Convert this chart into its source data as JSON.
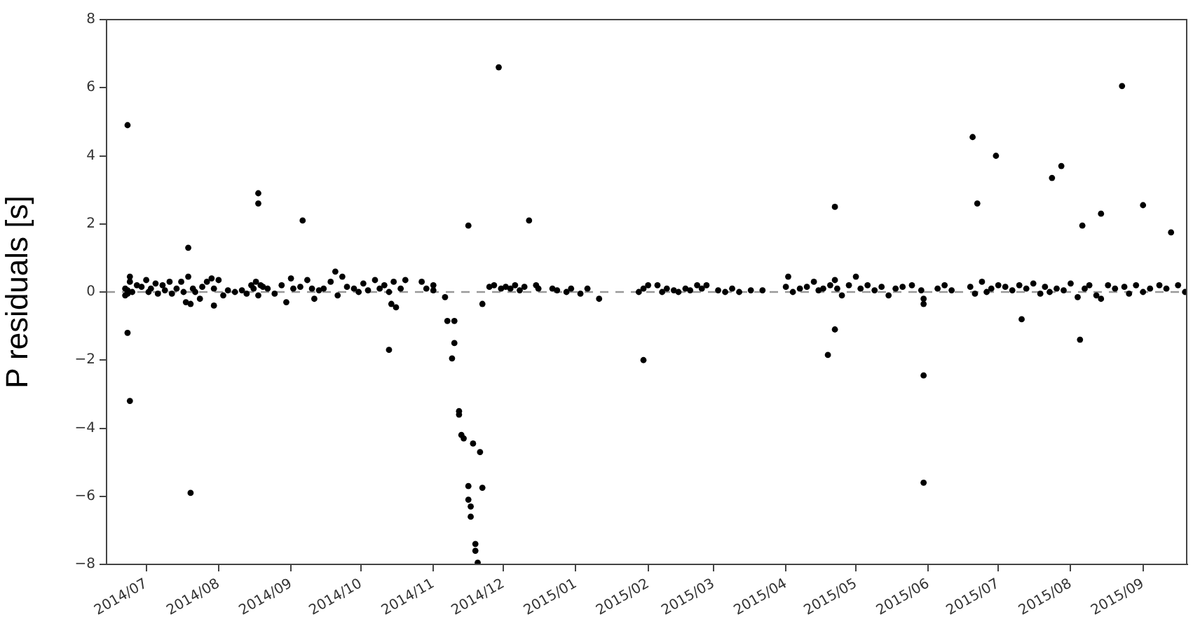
{
  "chart_data": {
    "type": "scatter",
    "ylabel": "P residuals [s]",
    "marker": "circle",
    "grid": false,
    "legend": false,
    "xlim": [
      "2014-06-14",
      "2015-09-20"
    ],
    "ylim": [
      -8,
      8
    ],
    "yticks": [
      -8,
      -6,
      -4,
      -2,
      0,
      2,
      4,
      6,
      8
    ],
    "xticks": [
      {
        "value": "2014-07-01",
        "label": "2014/07"
      },
      {
        "value": "2014-08-01",
        "label": "2014/08"
      },
      {
        "value": "2014-09-01",
        "label": "2014/09"
      },
      {
        "value": "2014-10-01",
        "label": "2014/10"
      },
      {
        "value": "2014-11-01",
        "label": "2014/11"
      },
      {
        "value": "2014-12-01",
        "label": "2014/12"
      },
      {
        "value": "2015-01-01",
        "label": "2015/01"
      },
      {
        "value": "2015-02-01",
        "label": "2015/02"
      },
      {
        "value": "2015-03-01",
        "label": "2015/03"
      },
      {
        "value": "2015-04-01",
        "label": "2015/04"
      },
      {
        "value": "2015-05-01",
        "label": "2015/05"
      },
      {
        "value": "2015-06-01",
        "label": "2015/06"
      },
      {
        "value": "2015-07-01",
        "label": "2015/07"
      },
      {
        "value": "2015-08-01",
        "label": "2015/08"
      },
      {
        "value": "2015-09-01",
        "label": "2015/09"
      }
    ],
    "ref_lines": [
      {
        "axis": "y",
        "value": 0,
        "color": "#999999",
        "line_style": "dashed"
      }
    ],
    "series": [
      {
        "color": "#000000",
        "x": [
          "2014-06-23",
          "2014-06-23",
          "2014-06-24",
          "2014-07-19",
          "2014-07-20",
          "2014-08-18",
          "2014-08-18",
          "2014-09-06",
          "2014-10-13",
          "2014-11-16",
          "2014-11-29",
          "2014-12-12",
          "2015-01-30",
          "2014-11-06",
          "2014-11-07",
          "2014-11-10",
          "2014-11-10",
          "2014-11-09",
          "2014-11-12",
          "2014-11-12",
          "2014-11-13",
          "2014-11-14",
          "2014-11-18",
          "2014-11-21",
          "2014-11-16",
          "2014-11-22",
          "2014-11-16",
          "2014-11-17",
          "2014-11-17",
          "2014-11-19",
          "2014-11-19",
          "2014-11-20",
          "2014-11-22",
          "2015-04-22",
          "2015-04-22",
          "2015-04-19",
          "2015-05-30",
          "2015-05-30",
          "2015-06-20",
          "2015-06-22",
          "2015-06-30",
          "2015-07-11",
          "2015-07-24",
          "2015-07-28",
          "2015-08-06",
          "2015-08-05",
          "2015-08-14",
          "2015-08-23",
          "2015-09-01",
          "2015-09-13",
          "2014-06-22",
          "2014-06-22",
          "2014-06-23",
          "2014-06-23",
          "2014-06-24",
          "2014-06-24",
          "2014-06-25",
          "2014-06-27",
          "2014-06-29",
          "2014-07-01",
          "2014-07-02",
          "2014-07-03",
          "2014-07-05",
          "2014-07-06",
          "2014-07-08",
          "2014-07-09",
          "2014-07-11",
          "2014-07-12",
          "2014-07-14",
          "2014-07-16",
          "2014-07-17",
          "2014-07-18",
          "2014-07-19",
          "2014-07-20",
          "2014-07-21",
          "2014-07-22",
          "2014-07-24",
          "2014-07-25",
          "2014-07-27",
          "2014-07-29",
          "2014-07-30",
          "2014-07-30",
          "2014-08-01",
          "2014-08-03",
          "2014-08-05",
          "2014-08-08",
          "2014-08-11",
          "2014-08-13",
          "2014-08-15",
          "2014-08-16",
          "2014-08-17",
          "2014-08-18",
          "2014-08-19",
          "2014-08-20",
          "2014-08-22",
          "2014-08-25",
          "2014-08-28",
          "2014-08-30",
          "2014-09-01",
          "2014-09-02",
          "2014-09-05",
          "2014-09-08",
          "2014-09-10",
          "2014-09-11",
          "2014-09-13",
          "2014-09-15",
          "2014-09-18",
          "2014-09-20",
          "2014-09-21",
          "2014-09-23",
          "2014-09-25",
          "2014-09-28",
          "2014-09-30",
          "2014-10-02",
          "2014-10-04",
          "2014-10-07",
          "2014-10-09",
          "2014-10-11",
          "2014-10-13",
          "2014-10-14",
          "2014-10-15",
          "2014-10-16",
          "2014-10-18",
          "2014-10-20",
          "2014-10-27",
          "2014-10-29",
          "2014-11-01",
          "2014-11-01",
          "2014-11-25",
          "2014-11-27",
          "2014-11-30",
          "2014-12-02",
          "2014-12-04",
          "2014-12-06",
          "2014-12-08",
          "2014-12-10",
          "2014-12-15",
          "2014-12-16",
          "2014-12-22",
          "2014-12-24",
          "2014-12-28",
          "2014-12-30",
          "2015-01-03",
          "2015-01-06",
          "2015-01-11",
          "2015-01-28",
          "2015-01-30",
          "2015-02-01",
          "2015-02-05",
          "2015-02-07",
          "2015-02-09",
          "2015-02-12",
          "2015-02-14",
          "2015-02-17",
          "2015-02-19",
          "2015-02-22",
          "2015-02-24",
          "2015-02-26",
          "2015-03-03",
          "2015-03-06",
          "2015-03-09",
          "2015-03-12",
          "2015-03-17",
          "2015-03-22",
          "2015-04-01",
          "2015-04-02",
          "2015-04-04",
          "2015-04-07",
          "2015-04-10",
          "2015-04-13",
          "2015-04-15",
          "2015-04-17",
          "2015-04-20",
          "2015-04-22",
          "2015-04-23",
          "2015-04-25",
          "2015-04-28",
          "2015-05-01",
          "2015-05-03",
          "2015-05-06",
          "2015-05-09",
          "2015-05-12",
          "2015-05-15",
          "2015-05-18",
          "2015-05-21",
          "2015-05-25",
          "2015-05-29",
          "2015-05-30",
          "2015-05-30",
          "2015-06-05",
          "2015-06-08",
          "2015-06-11",
          "2015-06-19",
          "2015-06-21",
          "2015-06-24",
          "2015-06-26",
          "2015-06-28",
          "2015-07-01",
          "2015-07-04",
          "2015-07-07",
          "2015-07-10",
          "2015-07-13",
          "2015-07-16",
          "2015-07-19",
          "2015-07-21",
          "2015-07-23",
          "2015-07-26",
          "2015-07-29",
          "2015-08-01",
          "2015-08-04",
          "2015-08-07",
          "2015-08-09",
          "2015-08-12",
          "2015-08-14",
          "2015-08-17",
          "2015-08-20",
          "2015-08-24",
          "2015-08-26",
          "2015-08-29",
          "2015-09-01",
          "2015-09-04",
          "2015-09-08",
          "2015-09-11",
          "2015-09-16",
          "2015-09-19"
        ],
        "values": [
          4.9,
          -1.2,
          -3.2,
          1.3,
          -5.9,
          2.9,
          2.6,
          2.1,
          -1.7,
          1.95,
          6.6,
          2.1,
          -2.0,
          -0.15,
          -0.85,
          -0.85,
          -1.5,
          -1.95,
          -3.5,
          -3.6,
          -4.2,
          -4.3,
          -4.45,
          -4.7,
          -5.7,
          -5.75,
          -6.1,
          -6.3,
          -6.6,
          -7.4,
          -7.6,
          -7.95,
          -0.35,
          2.5,
          -1.1,
          -1.85,
          -2.45,
          -5.6,
          4.55,
          2.6,
          4.0,
          -0.8,
          3.35,
          3.7,
          1.95,
          -1.4,
          2.3,
          6.05,
          2.55,
          1.75,
          0.1,
          -0.1,
          0.05,
          -0.05,
          0.45,
          0.3,
          0.0,
          0.2,
          0.15,
          0.35,
          0.0,
          0.1,
          0.25,
          -0.05,
          0.2,
          0.05,
          0.3,
          -0.05,
          0.1,
          0.3,
          0.0,
          -0.3,
          0.45,
          -0.35,
          0.1,
          0.0,
          -0.2,
          0.15,
          0.3,
          0.4,
          -0.4,
          0.1,
          0.35,
          -0.1,
          0.05,
          0.0,
          0.05,
          -0.05,
          0.2,
          0.1,
          0.3,
          -0.1,
          0.2,
          0.15,
          0.1,
          -0.05,
          0.2,
          -0.3,
          0.4,
          0.1,
          0.15,
          0.35,
          0.1,
          -0.2,
          0.05,
          0.1,
          0.3,
          0.6,
          -0.1,
          0.45,
          0.15,
          0.1,
          0.0,
          0.25,
          0.05,
          0.35,
          0.1,
          0.2,
          0.0,
          -0.35,
          0.3,
          -0.45,
          0.1,
          0.35,
          0.3,
          0.1,
          0.2,
          0.05,
          0.15,
          0.2,
          0.1,
          0.15,
          0.1,
          0.2,
          0.05,
          0.15,
          0.2,
          0.1,
          0.1,
          0.05,
          0.0,
          0.1,
          -0.05,
          0.1,
          -0.2,
          0.0,
          0.1,
          0.2,
          0.2,
          0.0,
          0.1,
          0.05,
          0.0,
          0.1,
          0.05,
          0.2,
          0.1,
          0.2,
          0.05,
          0.0,
          0.1,
          0.0,
          0.05,
          0.05,
          0.15,
          0.45,
          0.0,
          0.1,
          0.15,
          0.3,
          0.05,
          0.1,
          0.2,
          0.35,
          0.1,
          -0.1,
          0.2,
          0.45,
          0.1,
          0.2,
          0.05,
          0.15,
          -0.1,
          0.1,
          0.15,
          0.2,
          0.05,
          -0.2,
          -0.35,
          0.1,
          0.2,
          0.05,
          0.15,
          -0.05,
          0.3,
          0.0,
          0.1,
          0.2,
          0.15,
          0.05,
          0.2,
          0.1,
          0.25,
          -0.05,
          0.15,
          0.0,
          0.1,
          0.05,
          0.25,
          -0.15,
          0.1,
          0.2,
          -0.1,
          -0.2,
          0.2,
          0.1,
          0.15,
          -0.05,
          0.2,
          0.0,
          0.1,
          0.2,
          0.1,
          0.2,
          0.0
        ]
      }
    ]
  }
}
